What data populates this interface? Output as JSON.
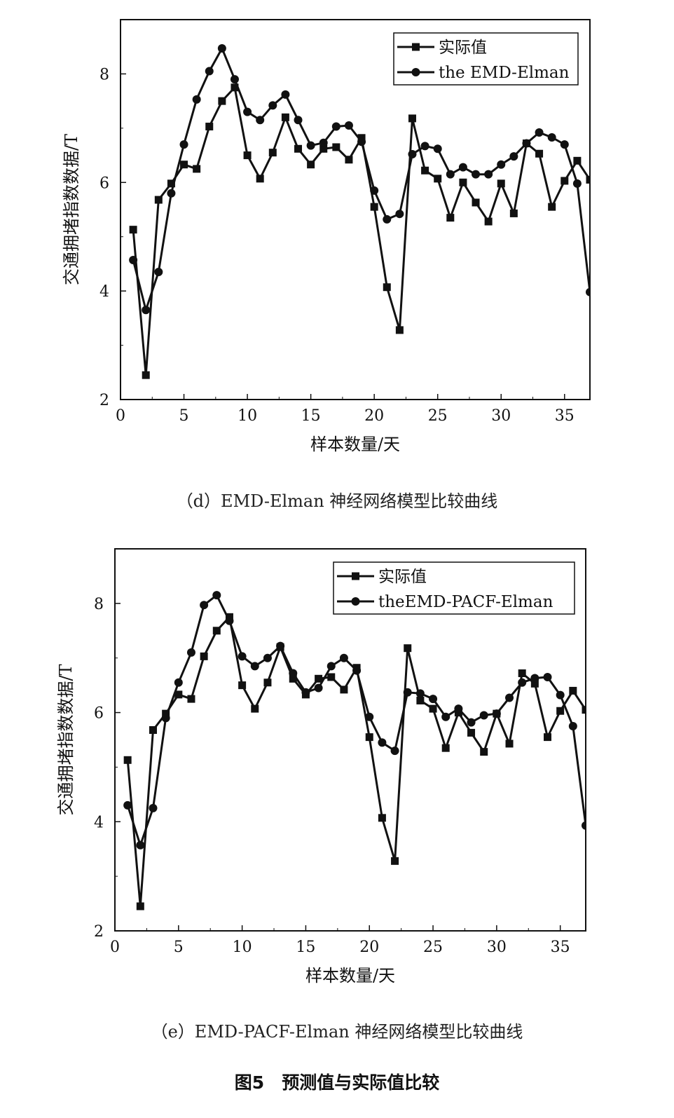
{
  "figure_title": "图5　预测值与实际值比较",
  "chart_data": [
    {
      "type": "line",
      "caption": "（d）EMD-Elman 神经网络模型比较曲线",
      "xlabel": "样本数量/天",
      "ylabel": "交通拥堵指数数据/T",
      "xlim": [
        0,
        37
      ],
      "ylim": [
        2,
        9
      ],
      "xticks": [
        0,
        5,
        10,
        15,
        20,
        25,
        30,
        35
      ],
      "yticks": [
        2,
        4,
        6,
        8
      ],
      "legend_position": "top-right",
      "x": [
        1,
        2,
        3,
        4,
        5,
        6,
        7,
        8,
        9,
        10,
        11,
        12,
        13,
        14,
        15,
        16,
        17,
        18,
        19,
        20,
        21,
        22,
        23,
        24,
        25,
        26,
        27,
        28,
        29,
        30,
        31,
        32,
        33,
        34,
        35,
        36,
        37
      ],
      "series": [
        {
          "name": "实际值",
          "marker": "square",
          "values": [
            5.13,
            2.45,
            5.68,
            5.98,
            6.33,
            6.25,
            7.03,
            7.5,
            7.75,
            6.5,
            6.07,
            6.55,
            7.2,
            6.62,
            6.33,
            6.62,
            6.65,
            6.42,
            6.82,
            5.55,
            4.07,
            3.28,
            7.18,
            6.22,
            6.07,
            5.35,
            6.0,
            5.63,
            5.28,
            5.98,
            5.43,
            6.72,
            6.53,
            5.55,
            6.03,
            6.4,
            6.05
          ]
        },
        {
          "name": "the EMD-Elman",
          "marker": "circle",
          "values": [
            4.57,
            3.65,
            4.35,
            5.8,
            6.7,
            7.53,
            8.05,
            8.47,
            7.9,
            7.3,
            7.15,
            7.42,
            7.62,
            7.15,
            6.68,
            6.73,
            7.03,
            7.05,
            6.75,
            5.85,
            5.32,
            5.42,
            6.52,
            6.67,
            6.62,
            6.15,
            6.28,
            6.15,
            6.15,
            6.33,
            6.48,
            6.72,
            6.92,
            6.83,
            6.7,
            5.98,
            3.98
          ]
        }
      ]
    },
    {
      "type": "line",
      "caption": "（e）EMD-PACF-Elman 神经网络模型比较曲线",
      "xlabel": "样本数量/天",
      "ylabel": "交通拥堵指数数据/T",
      "xlim": [
        0,
        37
      ],
      "ylim": [
        2,
        9
      ],
      "xticks": [
        0,
        5,
        10,
        15,
        20,
        25,
        30,
        35
      ],
      "yticks": [
        2,
        4,
        6,
        8
      ],
      "legend_position": "top-right",
      "x": [
        1,
        2,
        3,
        4,
        5,
        6,
        7,
        8,
        9,
        10,
        11,
        12,
        13,
        14,
        15,
        16,
        17,
        18,
        19,
        20,
        21,
        22,
        23,
        24,
        25,
        26,
        27,
        28,
        29,
        30,
        31,
        32,
        33,
        34,
        35,
        36,
        37
      ],
      "series": [
        {
          "name": "实际值",
          "marker": "square",
          "values": [
            5.13,
            2.45,
            5.68,
            5.98,
            6.33,
            6.25,
            7.03,
            7.5,
            7.75,
            6.5,
            6.07,
            6.55,
            7.2,
            6.62,
            6.33,
            6.62,
            6.65,
            6.42,
            6.82,
            5.55,
            4.07,
            3.28,
            7.18,
            6.22,
            6.07,
            5.35,
            6.0,
            5.63,
            5.28,
            5.98,
            5.43,
            6.72,
            6.53,
            5.55,
            6.03,
            6.4,
            6.05
          ]
        },
        {
          "name": "theEMD-PACF-Elman",
          "marker": "circle",
          "values": [
            4.3,
            3.57,
            4.25,
            5.9,
            6.55,
            7.1,
            7.97,
            8.15,
            7.68,
            7.03,
            6.85,
            7.0,
            7.22,
            6.72,
            6.37,
            6.45,
            6.85,
            7.0,
            6.77,
            5.92,
            5.45,
            5.3,
            6.37,
            6.35,
            6.25,
            5.92,
            6.07,
            5.82,
            5.95,
            5.98,
            6.27,
            6.55,
            6.63,
            6.65,
            6.32,
            5.75,
            3.93
          ]
        }
      ]
    }
  ]
}
